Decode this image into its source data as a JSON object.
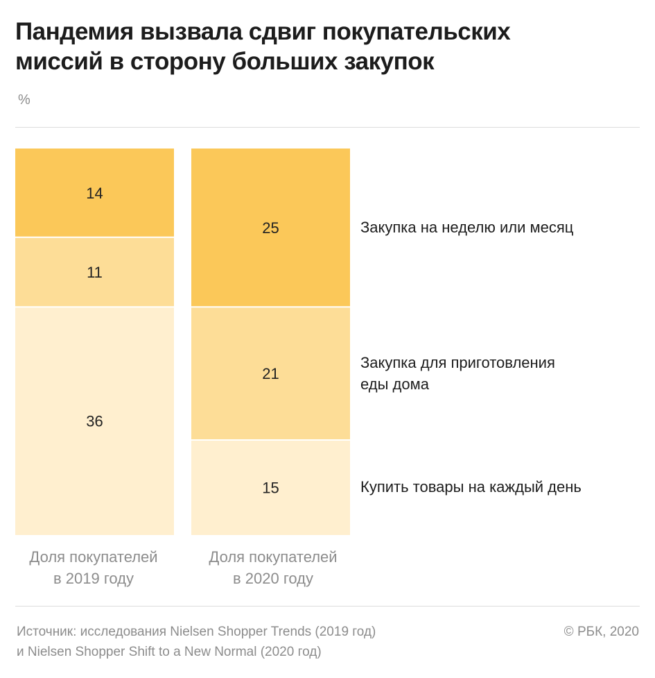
{
  "title_lines": [
    "Пандемия вызвала сдвиг покупательских",
    "миссий в сторону больших закупок"
  ],
  "unit": "%",
  "chart_data": {
    "type": "bar",
    "stacked": true,
    "categories": [
      [
        "Доля покупателей",
        "в 2019 году"
      ],
      [
        "Доля покупателей",
        "в 2020 году"
      ]
    ],
    "series": [
      {
        "name": "Купить товары на каждый день",
        "name_lines": [
          "Купить товары на каждый день"
        ],
        "color": "#FFEFCF",
        "values": [
          36,
          15
        ]
      },
      {
        "name": "Закупка для приготовления еды дома",
        "name_lines": [
          "Закупка для приготовления",
          "еды дома"
        ],
        "color": "#FDDD97",
        "values": [
          11,
          21
        ]
      },
      {
        "name": "Закупка на неделю или месяц",
        "name_lines": [
          "Закупка на неделю или месяц"
        ],
        "color": "#FBC859",
        "values": [
          14,
          25
        ]
      }
    ],
    "legend_position": "right",
    "grid": false
  },
  "source_lines": [
    "Источник: исследования Nielsen Shopper Trends (2019 год)",
    "и Nielsen Shopper Shift to a New Normal (2020 год)"
  ],
  "copyright": "© РБК, 2020"
}
